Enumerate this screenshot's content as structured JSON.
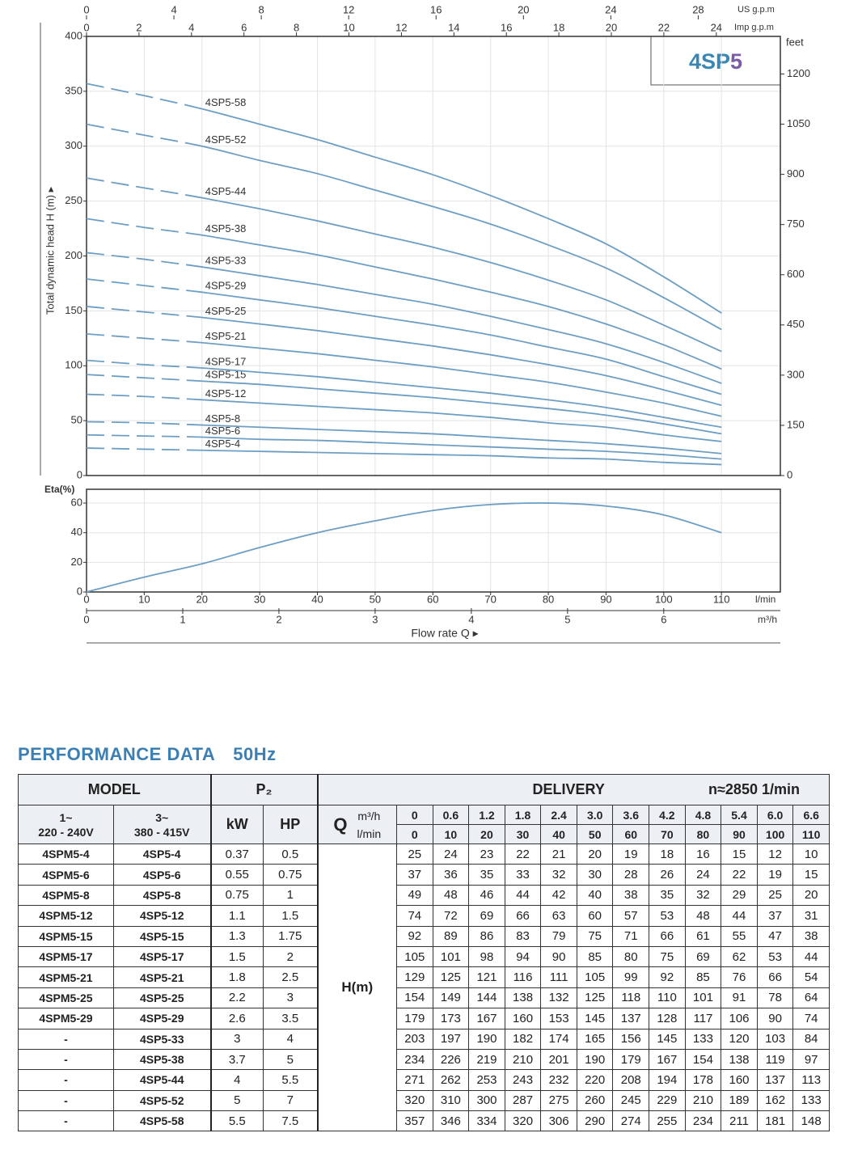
{
  "chart_data": [
    {
      "type": "line",
      "ylabel": "Total dynamic head H (m) ▸",
      "x": [
        0,
        10,
        20,
        30,
        40,
        50,
        60,
        70,
        80,
        90,
        100,
        110
      ],
      "xlim": [
        0,
        120.2
      ],
      "ylim": [
        0,
        400
      ],
      "yticks": [
        0,
        50,
        100,
        150,
        200,
        250,
        300,
        350,
        400
      ],
      "y2label": "feet",
      "y2lim": [
        0,
        1312.3
      ],
      "y2ticks": [
        0,
        150,
        300,
        450,
        600,
        750,
        900,
        1050,
        1200
      ],
      "top_axes": [
        {
          "label": "US g.p.m",
          "lim": [
            0,
            31.76
          ],
          "ticks": [
            0,
            4,
            8,
            12,
            16,
            20,
            24,
            28
          ]
        },
        {
          "label": "Imp g.p.m",
          "lim": [
            0,
            26.44
          ],
          "ticks": [
            0,
            2,
            4,
            6,
            8,
            10,
            12,
            14,
            16,
            18,
            20,
            22,
            24
          ]
        }
      ],
      "badge": [
        "4SP",
        "5"
      ],
      "color": "#6d9ec3",
      "grid": true,
      "series": [
        {
          "name": "4SP5-4",
          "values": [
            25,
            24,
            23,
            22,
            21,
            20,
            19,
            18,
            16,
            15,
            12,
            10
          ]
        },
        {
          "name": "4SP5-6",
          "values": [
            37,
            36,
            35,
            33,
            32,
            30,
            28,
            26,
            24,
            22,
            19,
            15
          ]
        },
        {
          "name": "4SP5-8",
          "values": [
            49,
            48,
            46,
            44,
            42,
            40,
            38,
            35,
            32,
            29,
            25,
            20
          ]
        },
        {
          "name": "4SP5-12",
          "values": [
            74,
            72,
            69,
            66,
            63,
            60,
            57,
            53,
            48,
            44,
            37,
            31
          ]
        },
        {
          "name": "4SP5-15",
          "values": [
            92,
            89,
            86,
            83,
            79,
            75,
            71,
            66,
            61,
            55,
            47,
            38
          ]
        },
        {
          "name": "4SP5-17",
          "values": [
            105,
            101,
            98,
            94,
            90,
            85,
            80,
            75,
            69,
            62,
            53,
            44
          ]
        },
        {
          "name": "4SP5-21",
          "values": [
            129,
            125,
            121,
            116,
            111,
            105,
            99,
            92,
            85,
            76,
            66,
            54
          ]
        },
        {
          "name": "4SP5-25",
          "values": [
            154,
            149,
            144,
            138,
            132,
            125,
            118,
            110,
            101,
            91,
            78,
            64
          ]
        },
        {
          "name": "4SP5-29",
          "values": [
            179,
            173,
            167,
            160,
            153,
            145,
            137,
            128,
            117,
            106,
            90,
            74
          ]
        },
        {
          "name": "4SP5-33",
          "values": [
            203,
            197,
            190,
            182,
            174,
            165,
            156,
            145,
            133,
            120,
            103,
            84
          ]
        },
        {
          "name": "4SP5-38",
          "values": [
            234,
            226,
            219,
            210,
            201,
            190,
            179,
            167,
            154,
            138,
            119,
            97
          ]
        },
        {
          "name": "4SP5-44",
          "values": [
            271,
            262,
            253,
            243,
            232,
            220,
            208,
            194,
            178,
            160,
            137,
            113
          ]
        },
        {
          "name": "4SP5-52",
          "values": [
            320,
            310,
            300,
            287,
            275,
            260,
            245,
            229,
            210,
            189,
            162,
            133
          ]
        },
        {
          "name": "4SP5-58",
          "values": [
            357,
            346,
            334,
            320,
            306,
            290,
            274,
            255,
            234,
            211,
            181,
            148
          ]
        }
      ]
    },
    {
      "type": "line",
      "ylabel": "Eta(%)",
      "x": [
        0,
        10,
        20,
        30,
        40,
        50,
        60,
        70,
        80,
        90,
        100,
        110
      ],
      "values": [
        0,
        10,
        19,
        30,
        40,
        48,
        55,
        59,
        60,
        58,
        52,
        40
      ],
      "xlim": [
        0,
        120.2
      ],
      "xticks": [
        0,
        10,
        20,
        30,
        40,
        50,
        60,
        70,
        80,
        90,
        100,
        110
      ],
      "xlabel": "l/min",
      "ylim": [
        0,
        69.3
      ],
      "yticks": [
        0,
        20,
        40,
        60
      ],
      "x2label": "m³/h",
      "x2lim": [
        0,
        7.212
      ],
      "x2ticks": [
        0,
        1,
        2,
        3,
        4,
        5,
        6
      ],
      "xtitle": "Flow rate Q ▸",
      "color": "#6d9ec3",
      "grid": true
    }
  ],
  "performance": {
    "title": "PERFORMANCE DATA",
    "frequency": "50Hz",
    "header": {
      "model": "MODEL",
      "power": "P₂",
      "delivery": "DELIVERY",
      "speed": "n≈2850 1/min",
      "single_phase": [
        "1~",
        "220 - 240V"
      ],
      "three_phase": [
        "3~",
        "380 - 415V"
      ],
      "kw": "kW",
      "hp": "HP",
      "q": "Q",
      "q_units": [
        "m³/h",
        "l/min"
      ],
      "m3h": [
        "0",
        "0.6",
        "1.2",
        "1.8",
        "2.4",
        "3.0",
        "3.6",
        "4.2",
        "4.8",
        "5.4",
        "6.0",
        "6.6"
      ],
      "lmin": [
        "0",
        "10",
        "20",
        "30",
        "40",
        "50",
        "60",
        "70",
        "80",
        "90",
        "100",
        "110"
      ]
    },
    "h_label": "H(m)",
    "rows": [
      [
        "4SPM5-4",
        "4SP5-4",
        "0.37",
        "0.5",
        "25",
        "24",
        "23",
        "22",
        "21",
        "20",
        "19",
        "18",
        "16",
        "15",
        "12",
        "10"
      ],
      [
        "4SPM5-6",
        "4SP5-6",
        "0.55",
        "0.75",
        "37",
        "36",
        "35",
        "33",
        "32",
        "30",
        "28",
        "26",
        "24",
        "22",
        "19",
        "15"
      ],
      [
        "4SPM5-8",
        "4SP5-8",
        "0.75",
        "1",
        "49",
        "48",
        "46",
        "44",
        "42",
        "40",
        "38",
        "35",
        "32",
        "29",
        "25",
        "20"
      ],
      [
        "4SPM5-12",
        "4SP5-12",
        "1.1",
        "1.5",
        "74",
        "72",
        "69",
        "66",
        "63",
        "60",
        "57",
        "53",
        "48",
        "44",
        "37",
        "31"
      ],
      [
        "4SPM5-15",
        "4SP5-15",
        "1.3",
        "1.75",
        "92",
        "89",
        "86",
        "83",
        "79",
        "75",
        "71",
        "66",
        "61",
        "55",
        "47",
        "38"
      ],
      [
        "4SPM5-17",
        "4SP5-17",
        "1.5",
        "2",
        "105",
        "101",
        "98",
        "94",
        "90",
        "85",
        "80",
        "75",
        "69",
        "62",
        "53",
        "44"
      ],
      [
        "4SPM5-21",
        "4SP5-21",
        "1.8",
        "2.5",
        "129",
        "125",
        "121",
        "116",
        "111",
        "105",
        "99",
        "92",
        "85",
        "76",
        "66",
        "54"
      ],
      [
        "4SPM5-25",
        "4SP5-25",
        "2.2",
        "3",
        "154",
        "149",
        "144",
        "138",
        "132",
        "125",
        "118",
        "110",
        "101",
        "91",
        "78",
        "64"
      ],
      [
        "4SPM5-29",
        "4SP5-29",
        "2.6",
        "3.5",
        "179",
        "173",
        "167",
        "160",
        "153",
        "145",
        "137",
        "128",
        "117",
        "106",
        "90",
        "74"
      ],
      [
        "-",
        "4SP5-33",
        "3",
        "4",
        "203",
        "197",
        "190",
        "182",
        "174",
        "165",
        "156",
        "145",
        "133",
        "120",
        "103",
        "84"
      ],
      [
        "-",
        "4SP5-38",
        "3.7",
        "5",
        "234",
        "226",
        "219",
        "210",
        "201",
        "190",
        "179",
        "167",
        "154",
        "138",
        "119",
        "97"
      ],
      [
        "-",
        "4SP5-44",
        "4",
        "5.5",
        "271",
        "262",
        "253",
        "243",
        "232",
        "220",
        "208",
        "194",
        "178",
        "160",
        "137",
        "113"
      ],
      [
        "-",
        "4SP5-52",
        "5",
        "7",
        "320",
        "310",
        "300",
        "287",
        "275",
        "260",
        "245",
        "229",
        "210",
        "189",
        "162",
        "133"
      ],
      [
        "-",
        "4SP5-58",
        "5.5",
        "7.5",
        "357",
        "346",
        "334",
        "320",
        "306",
        "290",
        "274",
        "255",
        "234",
        "211",
        "181",
        "148"
      ]
    ]
  }
}
